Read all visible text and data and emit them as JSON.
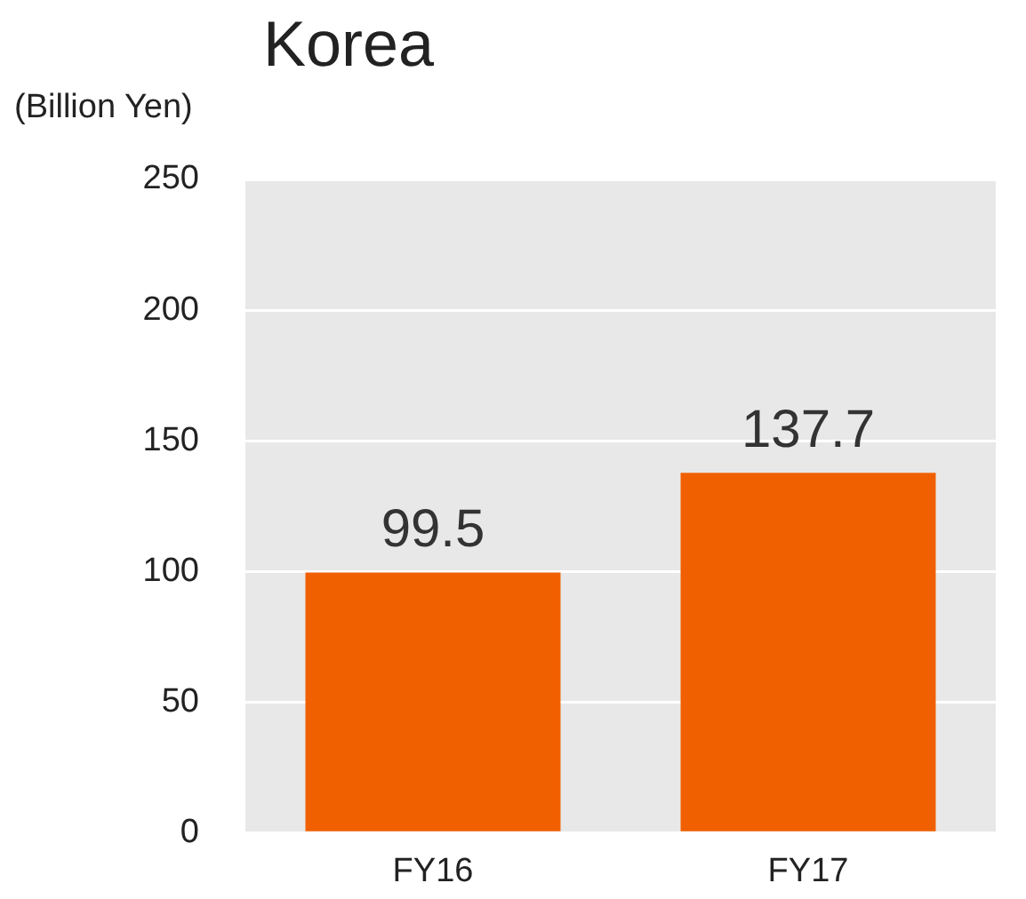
{
  "chart_data": {
    "type": "bar",
    "title": "Korea",
    "ylabel": "(Billion Yen)",
    "categories": [
      "FY16",
      "FY17"
    ],
    "values": [
      99.5,
      137.7
    ],
    "color": "#f06000",
    "ylim": [
      0,
      250
    ],
    "yticks": [
      0,
      50,
      100,
      150,
      200,
      250
    ],
    "grid": "y",
    "data_labels": true
  }
}
